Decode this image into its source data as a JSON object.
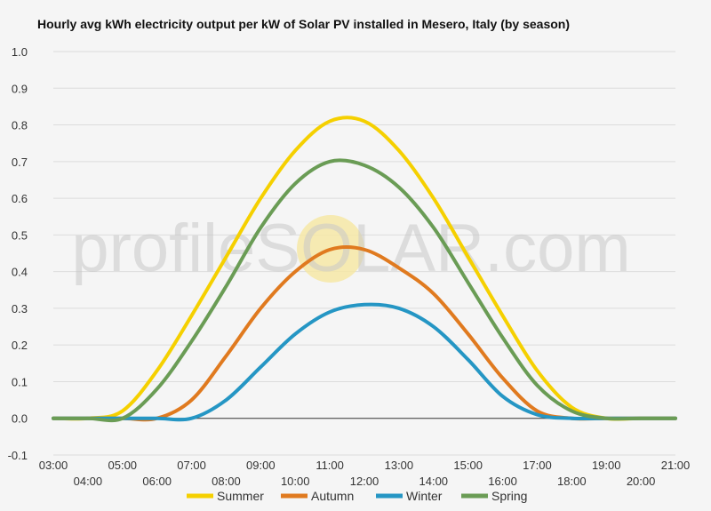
{
  "chart_data": {
    "type": "line",
    "title": "Hourly avg kWh electricity output per kW of Solar PV installed in Mesero, Italy (by season)",
    "watermark": "profileSOLAR.com",
    "ylim": [
      -0.1,
      1.0
    ],
    "y_ticks": [
      "-0.1",
      "0.0",
      "0.1",
      "0.2",
      "0.3",
      "0.4",
      "0.5",
      "0.6",
      "0.7",
      "0.8",
      "0.9",
      "1.0"
    ],
    "x_ticks": [
      "03:00",
      "04:00",
      "05:00",
      "06:00",
      "07:00",
      "08:00",
      "09:00",
      "10:00",
      "11:00",
      "12:00",
      "13:00",
      "14:00",
      "15:00",
      "16:00",
      "17:00",
      "18:00",
      "19:00",
      "20:00",
      "21:00"
    ],
    "x_hours": [
      3,
      4,
      5,
      6,
      7,
      8,
      9,
      10,
      11,
      12,
      13,
      14,
      15,
      16,
      17,
      18,
      19,
      20,
      21
    ],
    "grid": true,
    "legend_position": "bottom",
    "series": [
      {
        "name": "Summer",
        "color": "#f5d000",
        "values": [
          0.0,
          0.0,
          0.02,
          0.13,
          0.28,
          0.44,
          0.6,
          0.73,
          0.81,
          0.81,
          0.73,
          0.6,
          0.44,
          0.28,
          0.13,
          0.03,
          0.0,
          0.0,
          0.0
        ]
      },
      {
        "name": "Autumn",
        "color": "#e07a1f",
        "values": [
          0.0,
          0.0,
          0.0,
          0.0,
          0.05,
          0.17,
          0.3,
          0.4,
          0.46,
          0.46,
          0.41,
          0.34,
          0.23,
          0.11,
          0.02,
          0.0,
          0.0,
          0.0,
          0.0
        ]
      },
      {
        "name": "Winter",
        "color": "#2596c4",
        "values": [
          0.0,
          0.0,
          0.0,
          0.0,
          0.0,
          0.05,
          0.14,
          0.23,
          0.29,
          0.31,
          0.3,
          0.25,
          0.16,
          0.06,
          0.01,
          0.0,
          0.0,
          0.0,
          0.0
        ]
      },
      {
        "name": "Spring",
        "color": "#6a9c55",
        "values": [
          0.0,
          0.0,
          0.0,
          0.08,
          0.21,
          0.36,
          0.52,
          0.64,
          0.7,
          0.69,
          0.63,
          0.52,
          0.37,
          0.22,
          0.09,
          0.02,
          0.0,
          0.0,
          0.0
        ]
      }
    ]
  }
}
